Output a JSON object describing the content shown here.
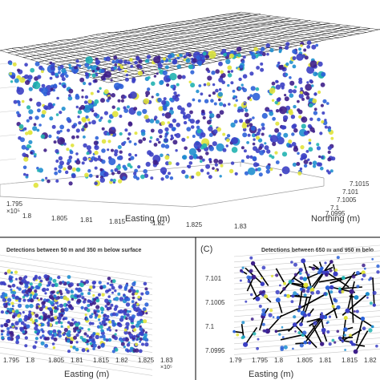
{
  "colors": {
    "points": [
      "#3e1f8a",
      "#3b3fc4",
      "#2c62d8",
      "#1f8fcf",
      "#21b3b0",
      "#e0e33a"
    ],
    "surface_mesh": "#1a1a1a",
    "vector_line": "#000000",
    "grid": "#c8c8c8"
  },
  "chart_data": [
    {
      "type": "scatter",
      "panel": "top-3d",
      "xlabel": "Easting (m)",
      "ylabel": "Northing (m)",
      "x_ticks": [
        "1.795",
        "1.8",
        "1.805",
        "1.81",
        "1.815",
        "1.82",
        "1.825",
        "1.83"
      ],
      "x_exponent": "×10⁵",
      "y_ticks": [
        "7.0995",
        "7.1",
        "7.1005",
        "7.101",
        "7.1015"
      ],
      "surface_mesh": true,
      "points": [
        {
          "x": 180200,
          "y": 7100500,
          "c": 2
        },
        {
          "x": 180650,
          "y": 7100800,
          "c": 1
        },
        {
          "x": 181100,
          "y": 7100300,
          "c": 5
        },
        {
          "x": 181600,
          "y": 7100700,
          "c": 3
        },
        {
          "x": 182050,
          "y": 7100450,
          "c": 2
        },
        {
          "x": 180400,
          "y": 7100200,
          "c": 4
        },
        {
          "x": 181900,
          "y": 7101000,
          "c": 1
        },
        {
          "x": 180900,
          "y": 7100950,
          "c": 3
        }
      ]
    },
    {
      "type": "scatter",
      "panel": "bottom-left",
      "title": "Detections between 50 m and 350 m below surface",
      "xlabel": "Easting (m)",
      "x_ticks": [
        "1.795",
        "1.8",
        "1.805",
        "1.81",
        "1.815",
        "1.82",
        "1.825",
        "1.83"
      ],
      "x_exponent": "×10⁵",
      "xlim": [
        179500,
        183000
      ],
      "points": [
        {
          "x": 180100,
          "y": 7100400,
          "c": 2
        },
        {
          "x": 180550,
          "y": 7100500,
          "c": 1
        },
        {
          "x": 180900,
          "y": 7100350,
          "c": 5
        },
        {
          "x": 181300,
          "y": 7100450,
          "c": 3
        },
        {
          "x": 181750,
          "y": 7100300,
          "c": 2
        },
        {
          "x": 182100,
          "y": 7100420,
          "c": 4
        }
      ]
    },
    {
      "type": "scatter",
      "panel": "bottom-right",
      "label": "(C)",
      "title": "Detections between 650 m and 950 m belo",
      "xlabel": "Easting (m)",
      "ylabel": "",
      "x_ticks": [
        "1.79",
        "1.795",
        "1.8",
        "1.805",
        "1.81",
        "1.815",
        "1.82"
      ],
      "y_ticks": [
        "7.101",
        "7.1005",
        "7.1",
        "7.0995"
      ],
      "xlim": [
        179000,
        182500
      ],
      "ylim": [
        7099400,
        7101200
      ],
      "vectors": [
        {
          "x0": 180100,
          "y0": 7100500,
          "x1": 180600,
          "y1": 7100950
        },
        {
          "x0": 180500,
          "y0": 7100200,
          "x1": 181200,
          "y1": 7100500
        },
        {
          "x0": 180800,
          "y0": 7099900,
          "x1": 181500,
          "y1": 7100250
        },
        {
          "x0": 181300,
          "y0": 7100700,
          "x1": 182100,
          "y1": 7100900
        },
        {
          "x0": 181600,
          "y0": 7100100,
          "x1": 182200,
          "y1": 7100500
        },
        {
          "x0": 180300,
          "y0": 7099800,
          "x1": 180700,
          "y1": 7100100
        }
      ],
      "points": [
        {
          "x": 180600,
          "y": 7100950,
          "c": 1
        },
        {
          "x": 181200,
          "y": 7100500,
          "c": 4
        },
        {
          "x": 181500,
          "y": 7100250,
          "c": 2
        },
        {
          "x": 182100,
          "y": 7100900,
          "c": 5
        },
        {
          "x": 182200,
          "y": 7100500,
          "c": 3
        },
        {
          "x": 180700,
          "y": 7100100,
          "c": 1
        }
      ]
    }
  ]
}
